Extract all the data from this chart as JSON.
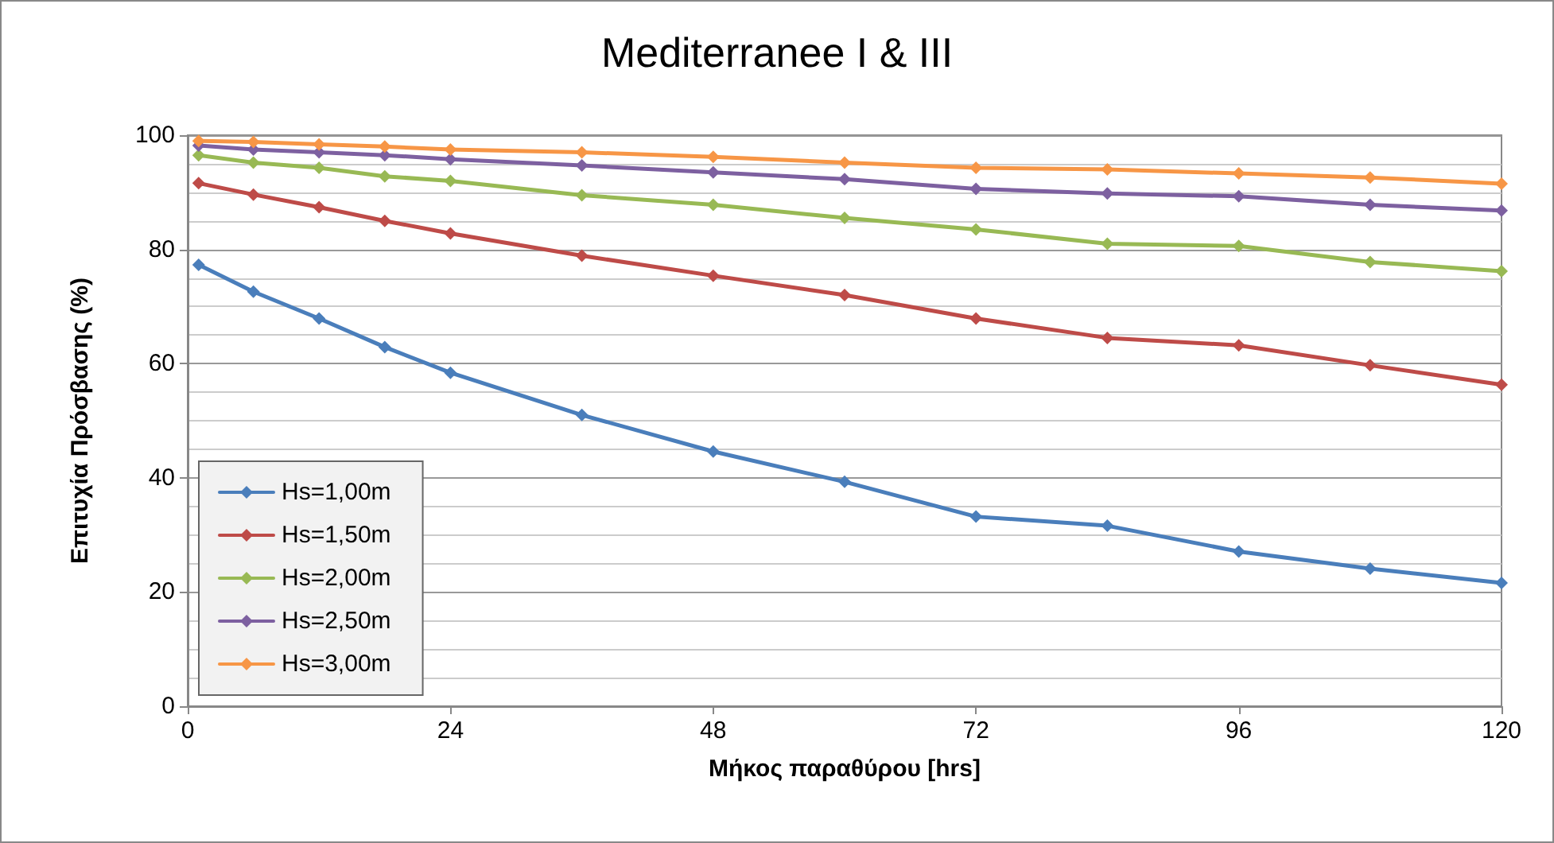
{
  "chart_data": {
    "type": "line",
    "title": "Mediterranee I & III",
    "xlabel": "Μήκος παραθύρου [hrs]",
    "ylabel": "Επιτυχία Πρόσβασης (%)",
    "x": [
      1,
      6,
      12,
      18,
      24,
      36,
      48,
      60,
      72,
      84,
      96,
      108,
      120
    ],
    "series": [
      {
        "name": "Hs=1,00m",
        "color": "#4a7ebb",
        "values": [
          77.3,
          72.6,
          67.9,
          62.9,
          58.4,
          51,
          44.6,
          39.3,
          33.2,
          31.6,
          27.1,
          24.1,
          21.6
        ]
      },
      {
        "name": "Hs=1,50m",
        "color": "#be4b48",
        "values": [
          91.6,
          89.6,
          87.4,
          85,
          82.8,
          78.9,
          75.4,
          72,
          67.9,
          64.5,
          63.2,
          59.7,
          56.3
        ]
      },
      {
        "name": "Hs=2,00m",
        "color": "#98b954",
        "values": [
          96.5,
          95.2,
          94.3,
          92.8,
          92,
          89.5,
          87.8,
          85.5,
          83.5,
          81,
          80.6,
          77.8,
          76.2
        ]
      },
      {
        "name": "Hs=2,50m",
        "color": "#7d60a0",
        "values": [
          98.2,
          97.5,
          97,
          96.5,
          95.8,
          94.7,
          93.5,
          92.3,
          90.6,
          89.8,
          89.3,
          87.8,
          86.8
        ]
      },
      {
        "name": "Hs=3,00m",
        "color": "#f79646",
        "values": [
          99,
          98.8,
          98.4,
          98,
          97.5,
          97,
          96.2,
          95.2,
          94.3,
          94,
          93.3,
          92.6,
          91.5
        ]
      }
    ],
    "xlim": [
      0,
      120
    ],
    "xticks": [
      0,
      24,
      48,
      72,
      96,
      120
    ],
    "ylim": [
      0,
      100
    ],
    "yticks": [
      0,
      20,
      40,
      60,
      80,
      100
    ],
    "grid": "y",
    "legend": "bottom left",
    "marker": "diamond",
    "line_style": "solid"
  }
}
